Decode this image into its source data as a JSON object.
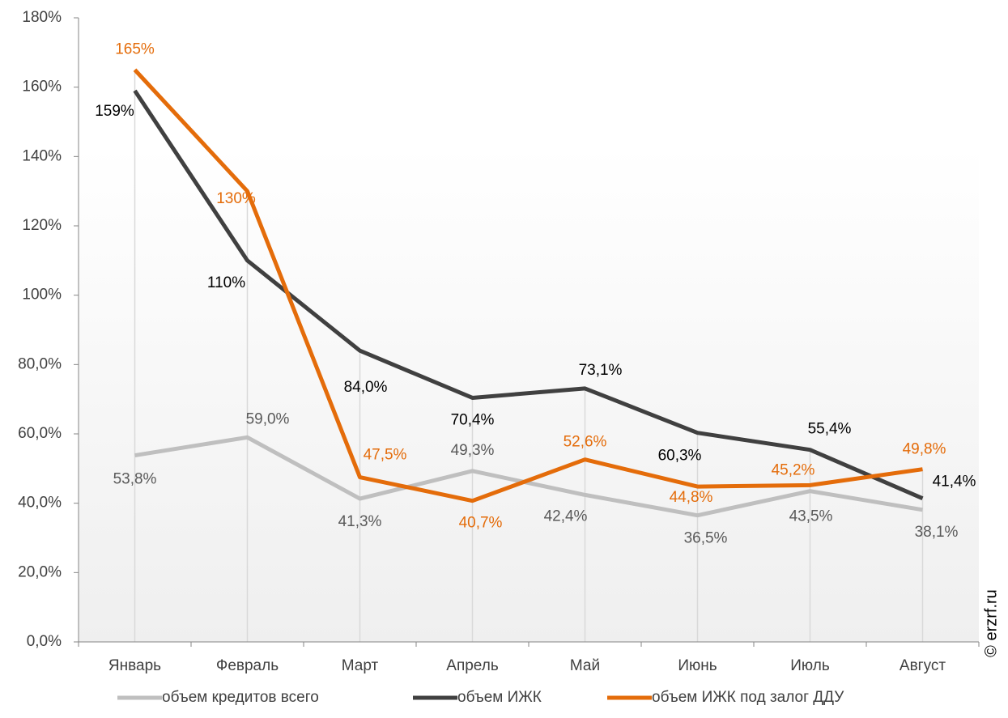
{
  "chart_data": {
    "type": "line",
    "categories": [
      "Январь",
      "Февраль",
      "Март",
      "Апрель",
      "Май",
      "Июнь",
      "Июль",
      "Август"
    ],
    "series": [
      {
        "name": "объем кредитов всего",
        "color": "#bfbfbf",
        "values": [
          53.8,
          59.0,
          41.3,
          49.3,
          42.4,
          36.5,
          43.5,
          38.1
        ],
        "value_labels": [
          "53,8%",
          "59,0%",
          "41,3%",
          "49,3%",
          "42,4%",
          "36,5%",
          "43,5%",
          "38,1%"
        ]
      },
      {
        "name": "объем ИЖК",
        "color": "#404040",
        "values": [
          159,
          110,
          84.0,
          70.4,
          73.1,
          60.3,
          55.4,
          41.4
        ],
        "value_labels": [
          "159%",
          "110%",
          "84,0%",
          "70,4%",
          "73,1%",
          "60,3%",
          "55,4%",
          "41,4%"
        ]
      },
      {
        "name": "объем ИЖК под залог ДДУ",
        "color": "#e46c0a",
        "values": [
          165,
          130,
          47.5,
          40.7,
          52.6,
          44.8,
          45.2,
          49.8
        ],
        "value_labels": [
          "165%",
          "130%",
          "47,5%",
          "40,7%",
          "52,6%",
          "44,8%",
          "45,2%",
          "49,8%"
        ]
      }
    ],
    "ylim": [
      0,
      180
    ],
    "yticks": [
      {
        "value": 0,
        "label": "0,0%"
      },
      {
        "value": 20,
        "label": "20,0%"
      },
      {
        "value": 40,
        "label": "40,0%"
      },
      {
        "value": 60,
        "label": "60,0%"
      },
      {
        "value": 80,
        "label": "80,0%"
      },
      {
        "value": 100,
        "label": "100%"
      },
      {
        "value": 120,
        "label": "120%"
      },
      {
        "value": 140,
        "label": "140%"
      },
      {
        "value": 160,
        "label": "160%"
      },
      {
        "value": 180,
        "label": "180%"
      }
    ],
    "legend": "bottom",
    "watermark": "© erzrf.ru"
  }
}
